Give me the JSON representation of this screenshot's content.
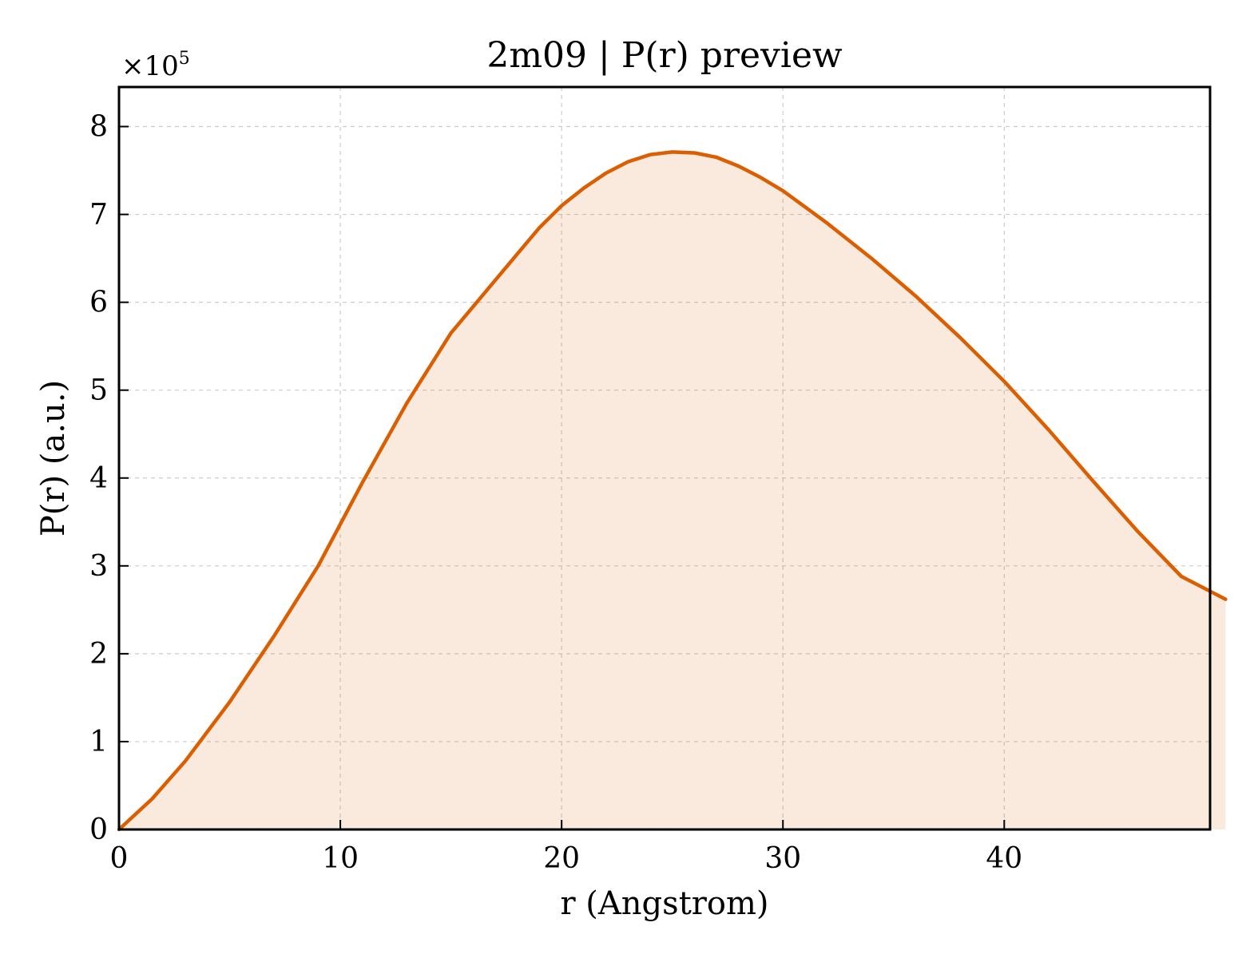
{
  "chart_data": {
    "type": "area",
    "title": "2m09 | P(r) preview",
    "xlabel": "r (Angstrom)",
    "ylabel": "P(r) (a.u.)",
    "y_offset_label": "×10",
    "y_offset_exponent": "5",
    "xlim": [
      0,
      49.3
    ],
    "ylim": [
      0,
      8.45
    ],
    "x_ticks": [
      0,
      10,
      20,
      30,
      40
    ],
    "y_ticks": [
      0,
      1,
      2,
      3,
      4,
      5,
      6,
      7,
      8
    ],
    "grid": true,
    "series": [
      {
        "color": "#d95f02",
        "fill_color": "#d95f02",
        "fill_opacity": 0.13,
        "points": [
          [
            0,
            0
          ],
          [
            1.5,
            0.35
          ],
          [
            3,
            0.78
          ],
          [
            5,
            1.45
          ],
          [
            7,
            2.2
          ],
          [
            9,
            3.0
          ],
          [
            11,
            3.95
          ],
          [
            13,
            4.85
          ],
          [
            15,
            5.65
          ],
          [
            17,
            6.25
          ],
          [
            18,
            6.55
          ],
          [
            19,
            6.85
          ],
          [
            20,
            7.1
          ],
          [
            21,
            7.3
          ],
          [
            22,
            7.47
          ],
          [
            23,
            7.6
          ],
          [
            24,
            7.68
          ],
          [
            25,
            7.71
          ],
          [
            26,
            7.7
          ],
          [
            27,
            7.65
          ],
          [
            28,
            7.55
          ],
          [
            29,
            7.42
          ],
          [
            30,
            7.27
          ],
          [
            32,
            6.9
          ],
          [
            34,
            6.5
          ],
          [
            36,
            6.07
          ],
          [
            38,
            5.6
          ],
          [
            40,
            5.1
          ],
          [
            42,
            4.55
          ],
          [
            44,
            3.97
          ],
          [
            46,
            3.4
          ],
          [
            48,
            2.88
          ],
          [
            50,
            2.62
          ]
        ]
      }
    ]
  }
}
